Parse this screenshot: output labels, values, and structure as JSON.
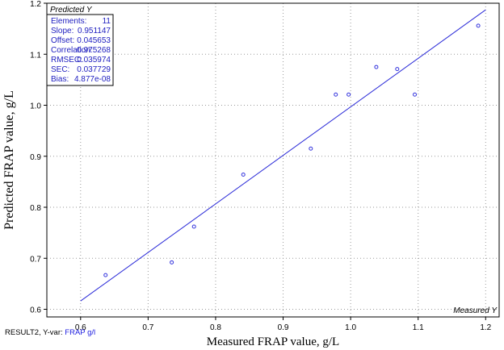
{
  "chart_data": {
    "type": "scatter",
    "title": "",
    "xlabel": "Measured FRAP value, g/L",
    "ylabel": "Predicted FRAP value, g/L",
    "xlim": [
      0.55,
      1.22
    ],
    "ylim": [
      0.585,
      1.2
    ],
    "x_ticks": [
      "0.6",
      "0.7",
      "0.8",
      "0.9",
      "1.0",
      "1.1",
      "1.2"
    ],
    "y_ticks": [
      "0.6",
      "0.7",
      "0.8",
      "0.9",
      "1.0",
      "1.1",
      "1.2"
    ],
    "grid": true,
    "corner_labels": {
      "y": "Predicted Y",
      "x": "Measured Y"
    },
    "points": [
      {
        "x": 0.637,
        "y": 0.667
      },
      {
        "x": 0.735,
        "y": 0.692
      },
      {
        "x": 0.768,
        "y": 0.762
      },
      {
        "x": 0.841,
        "y": 0.864
      },
      {
        "x": 0.941,
        "y": 0.915
      },
      {
        "x": 0.978,
        "y": 1.021
      },
      {
        "x": 0.997,
        "y": 1.021
      },
      {
        "x": 1.038,
        "y": 1.075
      },
      {
        "x": 1.069,
        "y": 1.071
      },
      {
        "x": 1.095,
        "y": 1.021
      },
      {
        "x": 1.189,
        "y": 1.156
      }
    ],
    "fit_line": {
      "slope": 0.951147,
      "offset": 0.045653,
      "x_range": [
        0.6,
        1.2
      ]
    },
    "stats": [
      {
        "label": "Elements:",
        "value": "11"
      },
      {
        "label": "Slope:",
        "value": "0.951147"
      },
      {
        "label": "Offset:",
        "value": "0.045653"
      },
      {
        "label": "Correlation:",
        "value": "0.975268"
      },
      {
        "label": "RMSEC:",
        "value": "0.035974"
      },
      {
        "label": "SEC:",
        "value": "0.037729"
      },
      {
        "label": "Bias:",
        "value": "4.877e-08"
      }
    ],
    "colors": {
      "points": "#3333dd",
      "fit_line": "#2a2ad8",
      "grid": "#9a9a9a",
      "stats_text": "#2020c0"
    }
  },
  "footer": {
    "prefix": "RESULT2, Y-var: ",
    "var_name": "FRAP g/l"
  }
}
